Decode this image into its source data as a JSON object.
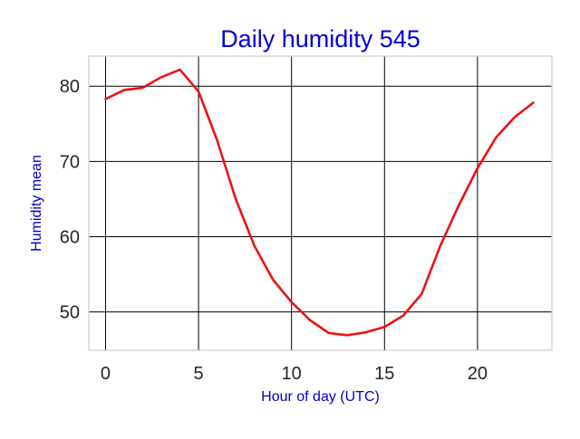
{
  "chart_data": {
    "type": "line",
    "title": "Daily humidity 545",
    "xlabel": "Hour of day (UTC)",
    "ylabel": "Humidity mean",
    "xlim": [
      -0.9,
      24.0
    ],
    "ylim": [
      44.9,
      84.0
    ],
    "xticks": [
      0,
      5,
      10,
      15,
      20
    ],
    "yticks": [
      50,
      60,
      70,
      80
    ],
    "grid": true,
    "legend": "none",
    "colors": {
      "line": "#ee1111",
      "title": "#0000dd",
      "axis_label": "#0000cc",
      "grid": "#000000",
      "frame": "#cccccc"
    },
    "series": [
      {
        "x": [
          0,
          1,
          2,
          3,
          4,
          5,
          6,
          7,
          8,
          9,
          10,
          11,
          12,
          13,
          14,
          15,
          16,
          17,
          18,
          19,
          20,
          21,
          22,
          23
        ],
        "values": [
          78.3,
          79.5,
          79.8,
          81.2,
          82.2,
          79.3,
          72.8,
          65.0,
          58.8,
          54.3,
          51.3,
          48.9,
          47.2,
          46.9,
          47.3,
          48.0,
          49.5,
          52.4,
          58.8,
          64.2,
          69.1,
          73.2,
          75.9,
          77.8
        ]
      }
    ]
  }
}
